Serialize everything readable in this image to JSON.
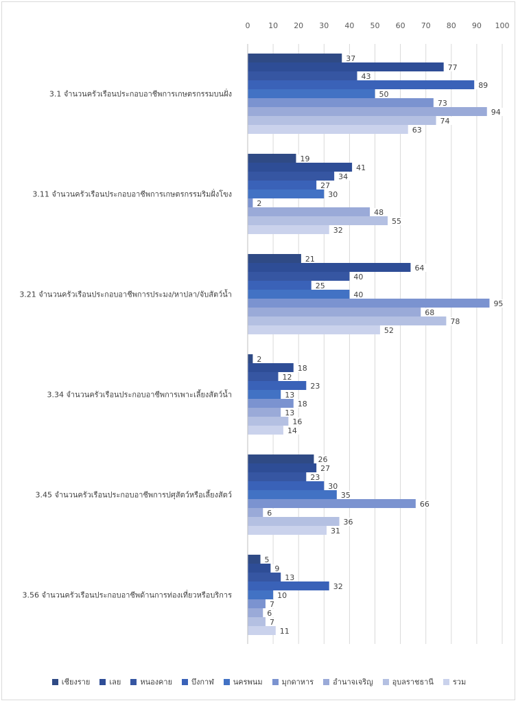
{
  "chart_data": {
    "type": "bar",
    "orientation": "horizontal",
    "title": "",
    "xlim": [
      0,
      100
    ],
    "xticks": [
      0,
      10,
      20,
      30,
      40,
      50,
      60,
      70,
      80,
      90,
      100
    ],
    "grid": true,
    "legend_position": "bottom",
    "categories": [
      "3.1 จำนวนครัวเรือนประกอบอาชีพการเกษตรกรรมบนฝั่ง",
      "3.11 จำนวนครัวเรือนประกอบอาชีพการเกษตรกรรมริมฝั่งโขง",
      "3.21 จำนวนครัวเรือนประกอบอาชีพการประมง/หาปลา/จับสัตว์น้ำ",
      "3.34 จำนวนครัวเรือนประกอบอาชีพการเพาะเลี้ยงสัตว์น้ำ",
      "3.45 จำนวนครัวเรือนประกอบอาชีพการปศุสัตว์หรือเลี้ยงสัตว์",
      "3.56 จำนวนครัวเรือนประกอบอาชีพด้านการท่องเที่ยวหรือบริการ"
    ],
    "series": [
      {
        "name": "เชียงราย",
        "color": "#2f4a85",
        "values": [
          37,
          19,
          21,
          2,
          26,
          5
        ]
      },
      {
        "name": "เลย",
        "color": "#2e4d96",
        "values": [
          77,
          41,
          64,
          18,
          27,
          9
        ]
      },
      {
        "name": "หนองคาย",
        "color": "#3656a2",
        "values": [
          43,
          34,
          40,
          12,
          23,
          13
        ]
      },
      {
        "name": "บึงกาฬ",
        "color": "#3a62b8",
        "values": [
          89,
          27,
          25,
          23,
          30,
          32
        ]
      },
      {
        "name": "นครพนม",
        "color": "#4272c4",
        "values": [
          50,
          30,
          40,
          13,
          35,
          10
        ]
      },
      {
        "name": "มุกดาหาร",
        "color": "#7b93d0",
        "values": [
          73,
          2,
          95,
          18,
          66,
          7
        ]
      },
      {
        "name": "อำนาจเจริญ",
        "color": "#9aaad8",
        "values": [
          94,
          48,
          68,
          13,
          6,
          6
        ]
      },
      {
        "name": "อุบลราชธานี",
        "color": "#b4c0e2",
        "values": [
          74,
          55,
          78,
          16,
          36,
          7
        ]
      },
      {
        "name": "รวม",
        "color": "#cad2ec",
        "values": [
          63,
          32,
          52,
          14,
          31,
          11
        ]
      }
    ]
  }
}
